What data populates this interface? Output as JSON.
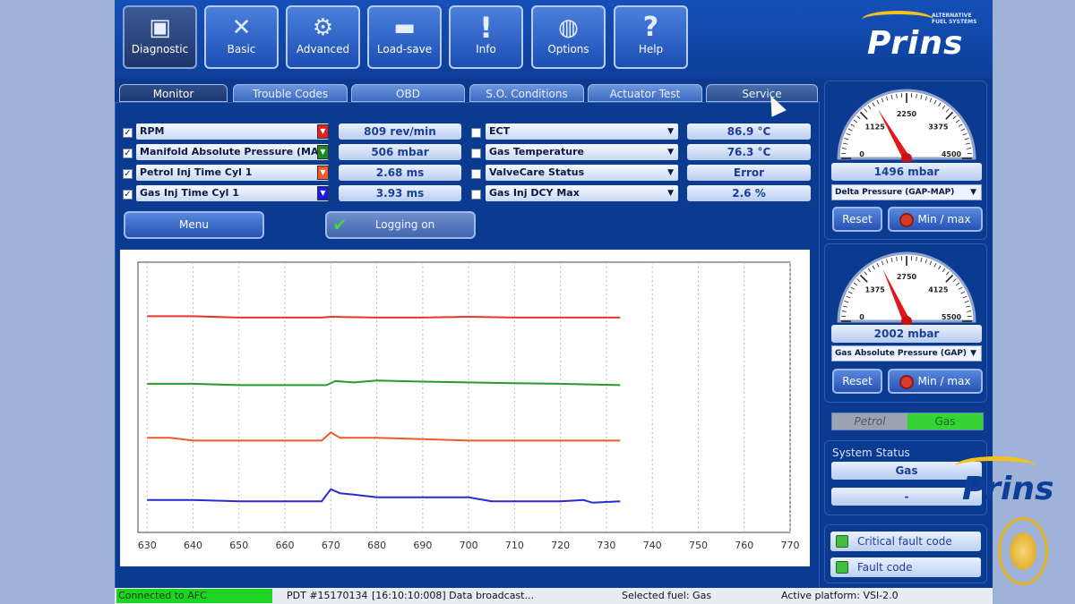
{
  "toolbar": {
    "buttons": [
      {
        "label": "Diagnostic",
        "icon": "monitor-icon"
      },
      {
        "label": "Basic",
        "icon": "tools-icon"
      },
      {
        "label": "Advanced",
        "icon": "gear-icon"
      },
      {
        "label": "Load-save",
        "icon": "drive-icon"
      },
      {
        "label": "Info",
        "icon": "exclamation-icon"
      },
      {
        "label": "Options",
        "icon": "globe-icon"
      },
      {
        "label": "Help",
        "icon": "question-icon"
      }
    ],
    "logo_text": "Prins",
    "logo_sub": "ALTERNATIVE FUEL SYSTEMS"
  },
  "tabs": [
    "Monitor",
    "Trouble Codes",
    "OBD",
    "S.O. Conditions",
    "Actuator Test",
    "Service"
  ],
  "params_left": [
    {
      "name": "RPM",
      "value": "809 rev/min",
      "color": "#e02020",
      "checked": true
    },
    {
      "name": "Manifold Absolute Pressure (MAP)",
      "value": "506 mbar",
      "color": "#1a8a1a",
      "checked": true
    },
    {
      "name": "Petrol Inj Time Cyl 1",
      "value": "2.68 ms",
      "color": "#f05a28",
      "checked": true
    },
    {
      "name": "Gas Inj Time Cyl 1",
      "value": "3.93 ms",
      "color": "#1a1ae0",
      "checked": true
    }
  ],
  "params_right": [
    {
      "name": "ECT",
      "value": "86.9 °C"
    },
    {
      "name": "Gas Temperature",
      "value": "76.3 °C"
    },
    {
      "name": "ValveCare Status",
      "value": "Error"
    },
    {
      "name": "Gas Inj DCY Max",
      "value": "2.6 %"
    }
  ],
  "buttons": {
    "menu": "Menu",
    "logging": "Logging on"
  },
  "chart_data": {
    "type": "line",
    "x_ticks": [
      630,
      640,
      650,
      660,
      670,
      680,
      690,
      700,
      710,
      720,
      730,
      740,
      750,
      760,
      770
    ],
    "xlim": [
      628,
      770
    ],
    "ylim": [
      0,
      100
    ],
    "grid": true,
    "series": [
      {
        "color": "#e8362c",
        "x": [
          630,
          640,
          650,
          660,
          668,
          670,
          680,
          690,
          700,
          710,
          720,
          733
        ],
        "y": [
          80,
          80,
          79.5,
          79.5,
          79.5,
          79.8,
          79.5,
          79.5,
          79.8,
          79.5,
          79.5,
          79.5
        ]
      },
      {
        "color": "#2a9a2a",
        "x": [
          630,
          640,
          650,
          660,
          669,
          671,
          675,
          680,
          690,
          700,
          710,
          720,
          733
        ],
        "y": [
          55,
          55,
          54.5,
          54.5,
          54.5,
          56,
          55.5,
          56.2,
          55.8,
          55.5,
          55.2,
          55,
          54.5
        ]
      },
      {
        "color": "#f05a28",
        "x": [
          630,
          635,
          640,
          650,
          660,
          668,
          670,
          672,
          680,
          690,
          700,
          710,
          720,
          733
        ],
        "y": [
          35,
          35,
          34,
          34,
          34,
          34,
          37,
          35,
          35,
          34.5,
          34,
          34,
          34,
          34
        ]
      },
      {
        "color": "#2a2ad0",
        "x": [
          630,
          640,
          650,
          660,
          668,
          670,
          672,
          675,
          680,
          690,
          700,
          705,
          710,
          720,
          725,
          727,
          733
        ],
        "y": [
          12,
          12,
          11.5,
          11.5,
          11.5,
          16,
          14.5,
          14,
          13,
          13,
          13,
          11.5,
          11.5,
          11.5,
          12,
          11,
          11.5
        ]
      }
    ]
  },
  "gauge1": {
    "ticks": [
      "0",
      "1125",
      "2250",
      "3375",
      "4500"
    ],
    "max": 4500,
    "value": 1496,
    "readout": "1496 mbar",
    "select": "Delta Pressure (GAP-MAP)"
  },
  "gauge2": {
    "ticks": [
      "0",
      "1375",
      "2750",
      "4125",
      "5500"
    ],
    "max": 5500,
    "value": 2002,
    "readout": "2002 mbar",
    "select": "Gas Absolute Pressure (GAP)"
  },
  "gauge_buttons": {
    "reset": "Reset",
    "minmax": "Min / max"
  },
  "fuel": {
    "petrol": "Petrol",
    "gas": "Gas"
  },
  "system_status": {
    "title": "System Status",
    "value1": "Gas",
    "value2": "-"
  },
  "faults": {
    "critical": "Critical fault code",
    "fault": "Fault code"
  },
  "statusbar": {
    "connection": "Connected to AFC",
    "pdt": "PDT #15170134",
    "message": "[16:10:10:008] Data broadcast...",
    "fuel": "Selected fuel: Gas",
    "platform": "Active platform: VSI-2.0"
  },
  "brand_overlay": "Prins"
}
